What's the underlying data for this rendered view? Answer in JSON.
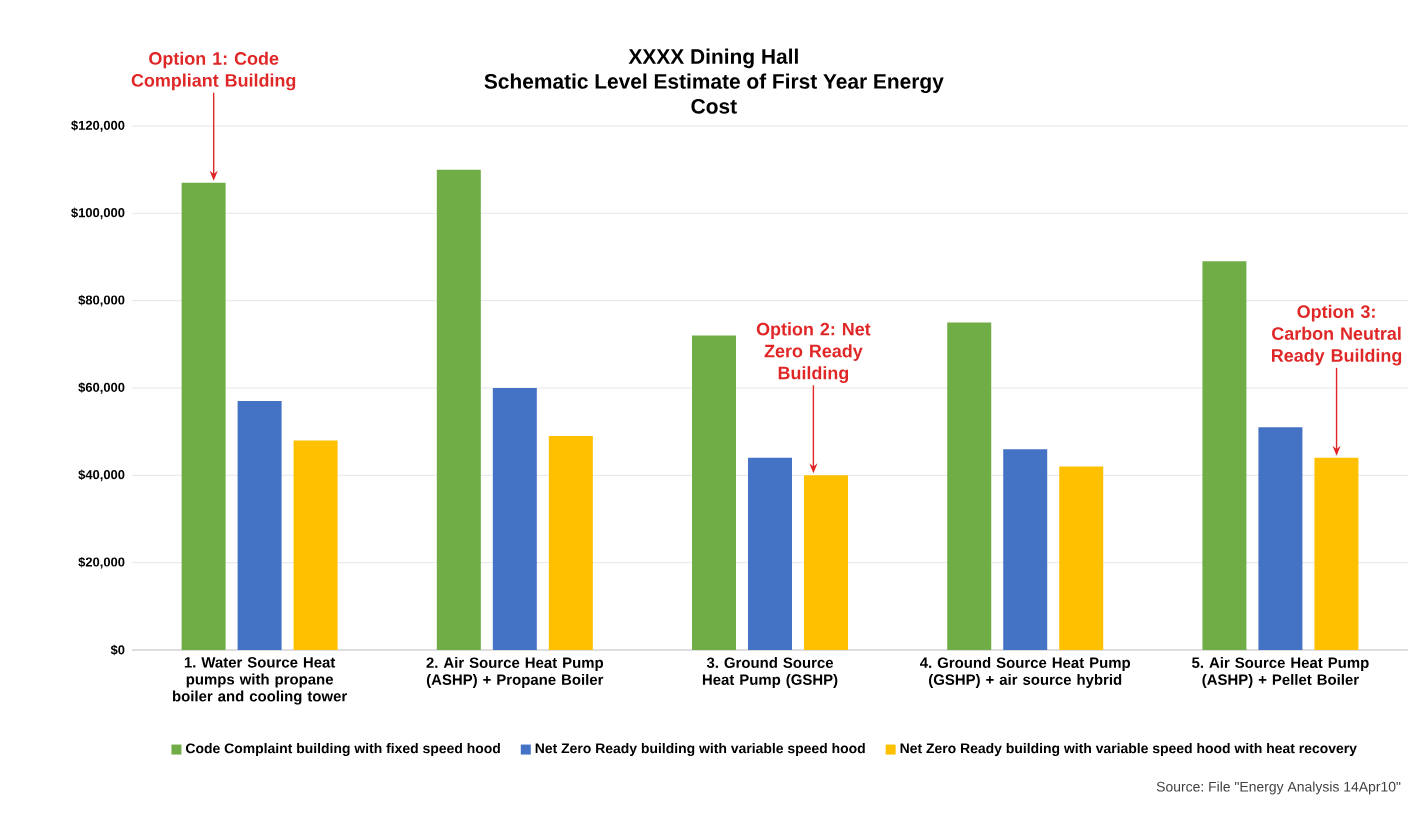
{
  "chart_data": {
    "type": "bar",
    "title": "XXXX Dining Hall",
    "subtitle": "Schematic Level Estimate of First Year Energy Cost",
    "categories": [
      "1. Water Source Heat pumps with propane boiler and cooling tower",
      "2. Air Source Heat Pump (ASHP) + Propane Boiler",
      "3. Ground Source Heat Pump (GSHP)",
      "4. Ground Source Heat Pump (GSHP) + air source hybrid",
      "5. Air Source Heat Pump (ASHP) + Pellet Boiler"
    ],
    "series": [
      {
        "name": "Code Complaint building with fixed speed hood",
        "color": "#70ad47",
        "values": [
          107000,
          110000,
          72000,
          75000,
          89000
        ]
      },
      {
        "name": "Net Zero Ready building with variable speed hood",
        "color": "#4472c4",
        "values": [
          57000,
          60000,
          44000,
          46000,
          51000
        ]
      },
      {
        "name": "Net Zero Ready building with variable speed hood with heat recovery",
        "color": "#ffc000",
        "values": [
          48000,
          49000,
          40000,
          42000,
          44000
        ]
      }
    ],
    "ylim": [
      0,
      120000
    ],
    "yticks": [
      {
        "value": 0,
        "label": "$0"
      },
      {
        "value": 20000,
        "label": "$20,000"
      },
      {
        "value": 40000,
        "label": "$40,000"
      },
      {
        "value": 60000,
        "label": "$60,000"
      },
      {
        "value": 80000,
        "label": "$80,000"
      },
      {
        "value": 100000,
        "label": "$100,000"
      },
      {
        "value": 120000,
        "label": "$120,000"
      }
    ],
    "grid": "y",
    "legend": "bottom",
    "annotations": [
      {
        "text": "Option 1: Code Compliant Building",
        "y": 107000
      },
      {
        "text": "Option 2: Net Zero Ready Building",
        "y": 40000
      },
      {
        "text": "Option 3: Carbon Neutral Ready Building",
        "y": 44000
      },
      "Source: File \"Energy Analysis 14Apr10\""
    ]
  }
}
